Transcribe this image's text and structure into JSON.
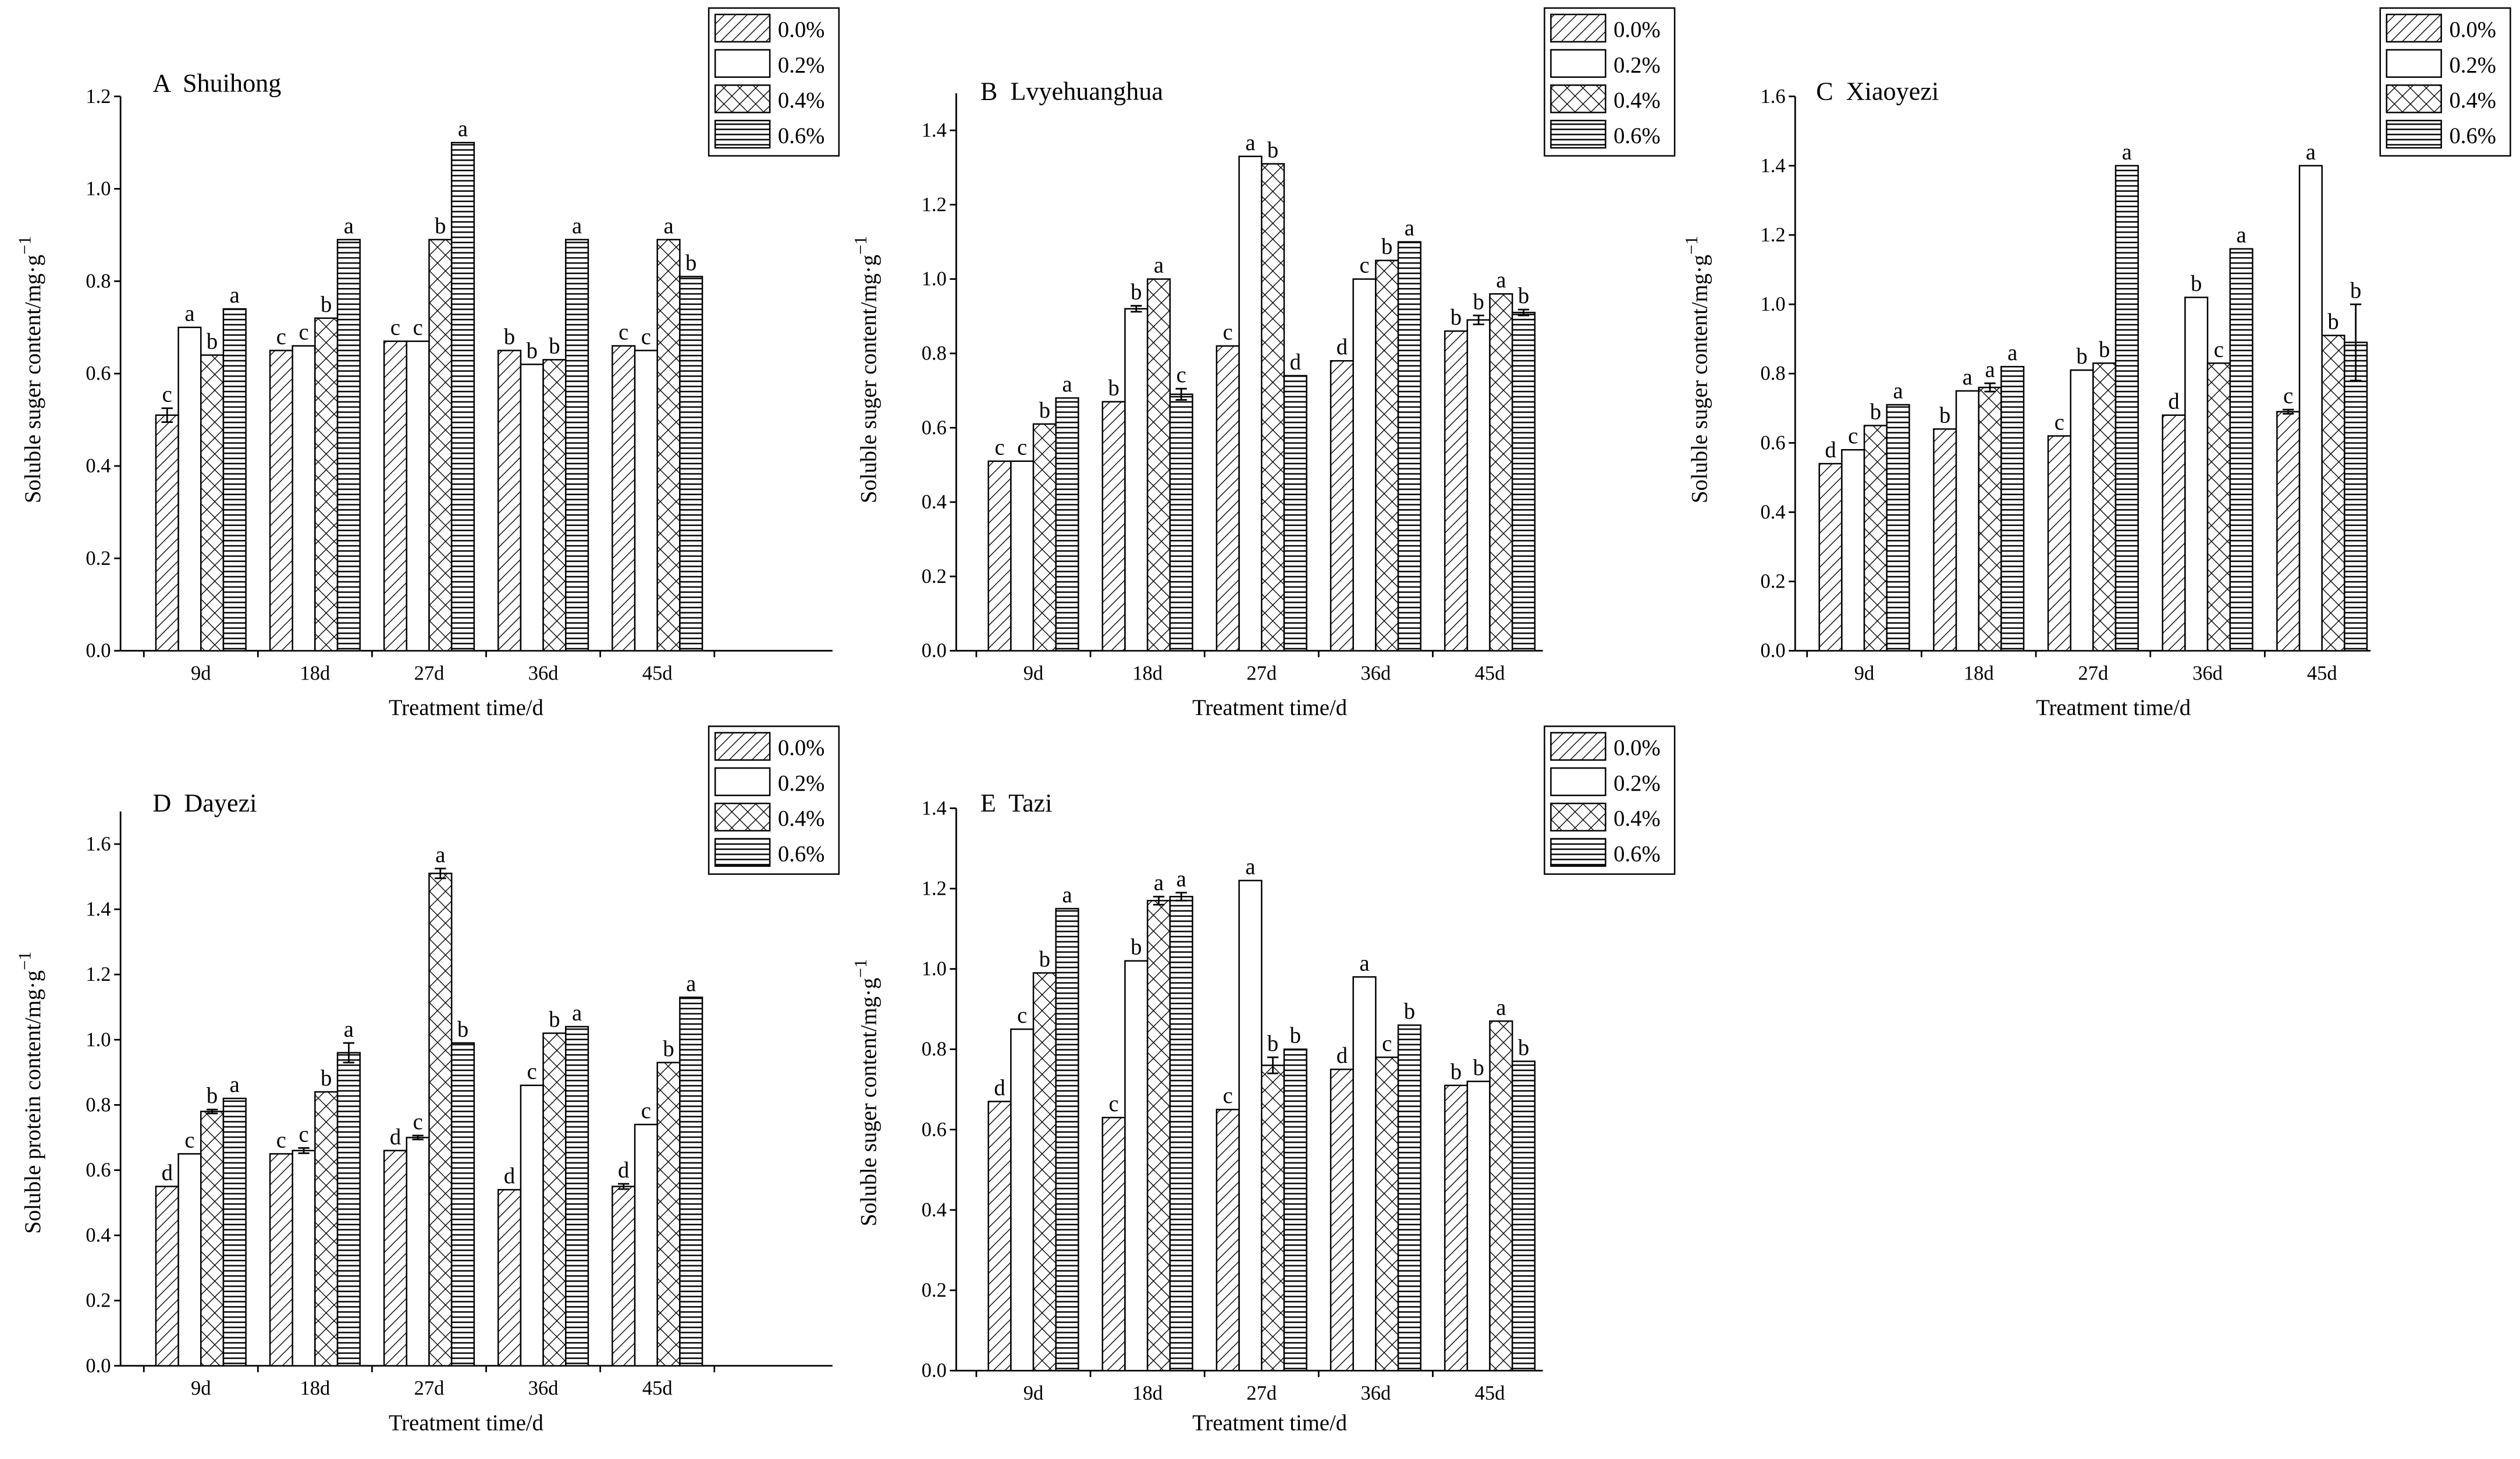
{
  "chart_data": [
    {
      "type": "bar",
      "title": "A  Shuihong",
      "xlabel": "Treatment time/d",
      "ylabel": "Soluble suger content/mg·g",
      "ylabel_sup": "−1",
      "categories": [
        "9d",
        "18d",
        "27d",
        "36d",
        "45d"
      ],
      "ylim": [
        0,
        1.2
      ],
      "yticks": [
        {
          "value": 0,
          "label": "0.0"
        },
        0.2,
        0.4,
        0.6,
        0.8,
        {
          "value": 1,
          "label": "1.0"
        },
        1.2
      ],
      "series": [
        {
          "name": "0.0%",
          "pattern": "diagonal",
          "values": [
            0.51,
            0.65,
            0.67,
            0.65,
            0.66
          ],
          "errors": [
            0.015,
            null,
            null,
            null,
            null
          ],
          "letters": [
            "c",
            "c",
            "c",
            "b",
            "c"
          ]
        },
        {
          "name": "0.2%",
          "pattern": "none",
          "values": [
            0.7,
            0.66,
            0.67,
            0.62,
            0.65
          ],
          "errors": [
            null,
            null,
            null,
            null,
            null
          ],
          "letters": [
            "a",
            "c",
            "c",
            "b",
            "c"
          ]
        },
        {
          "name": "0.4%",
          "pattern": "crosshatch",
          "values": [
            0.64,
            0.72,
            0.89,
            0.63,
            0.89
          ],
          "errors": [
            null,
            null,
            null,
            null,
            null
          ],
          "letters": [
            "b",
            "b",
            "b",
            "b",
            "a"
          ]
        },
        {
          "name": "0.6%",
          "pattern": "horizontal",
          "values": [
            0.74,
            0.89,
            1.1,
            0.89,
            0.81
          ],
          "errors": [
            null,
            null,
            null,
            null,
            null
          ],
          "letters": [
            "a",
            "a",
            "a",
            "a",
            "b"
          ]
        }
      ]
    },
    {
      "type": "bar",
      "title": "B  Lvyehuanghua",
      "xlabel": "Treatment time/d",
      "ylabel": "Soluble suger content/mg·g",
      "ylabel_sup": "−1",
      "categories": [
        "9d",
        "18d",
        "27d",
        "36d",
        "45d"
      ],
      "ylim": [
        0,
        1.5
      ],
      "yticks": [
        {
          "value": 0,
          "label": "0.0"
        },
        0.2,
        0.4,
        0.6,
        0.8,
        {
          "value": 1,
          "label": "1.0"
        },
        1.2,
        1.4
      ],
      "series": [
        {
          "name": "0.0%",
          "pattern": "diagonal",
          "values": [
            0.51,
            0.67,
            0.82,
            0.78,
            0.86
          ],
          "errors": [
            null,
            null,
            null,
            null,
            null
          ],
          "letters": [
            "c",
            "b",
            "c",
            "d",
            "b"
          ]
        },
        {
          "name": "0.2%",
          "pattern": "none",
          "values": [
            0.51,
            0.92,
            1.33,
            1.0,
            0.89
          ],
          "errors": [
            null,
            0.008,
            null,
            null,
            0.012
          ],
          "letters": [
            "c",
            "b",
            "a",
            "c",
            "b"
          ]
        },
        {
          "name": "0.4%",
          "pattern": "crosshatch",
          "values": [
            0.61,
            1.0,
            1.31,
            1.05,
            0.96
          ],
          "errors": [
            null,
            null,
            null,
            null,
            null
          ],
          "letters": [
            "b",
            "a",
            "b",
            "b",
            "a"
          ]
        },
        {
          "name": "0.6%",
          "pattern": "horizontal",
          "values": [
            0.68,
            0.69,
            0.74,
            1.1,
            0.91
          ],
          "errors": [
            null,
            0.015,
            null,
            null,
            0.008
          ],
          "letters": [
            "a",
            "c",
            "d",
            "a",
            "b"
          ]
        }
      ]
    },
    {
      "type": "bar",
      "title": "C  Xiaoyezi",
      "xlabel": "Treatment time/d",
      "ylabel": "Soluble suger content/mg·g",
      "ylabel_sup": "−1",
      "categories": [
        "9d",
        "18d",
        "27d",
        "36d",
        "45d"
      ],
      "ylim": [
        0,
        1.6
      ],
      "yticks": [
        {
          "value": 0,
          "label": "0.0"
        },
        0.2,
        0.4,
        0.6,
        0.8,
        {
          "value": 1,
          "label": "1.0"
        },
        1.2,
        1.4,
        1.6
      ],
      "series": [
        {
          "name": "0.0%",
          "pattern": "diagonal",
          "values": [
            0.54,
            0.64,
            0.62,
            0.68,
            0.69
          ],
          "errors": [
            null,
            null,
            null,
            null,
            0.006
          ],
          "letters": [
            "d",
            "b",
            "c",
            "d",
            "c"
          ]
        },
        {
          "name": "0.2%",
          "pattern": "none",
          "values": [
            0.58,
            0.75,
            0.81,
            1.02,
            1.4
          ],
          "errors": [
            null,
            null,
            null,
            null,
            null
          ],
          "letters": [
            "c",
            "a",
            "b",
            "b",
            "a"
          ]
        },
        {
          "name": "0.4%",
          "pattern": "crosshatch",
          "values": [
            0.65,
            0.76,
            0.83,
            0.83,
            0.91
          ],
          "errors": [
            null,
            0.012,
            null,
            null,
            null
          ],
          "letters": [
            "b",
            "a",
            "b",
            "c",
            "b"
          ]
        },
        {
          "name": "0.6%",
          "pattern": "horizontal",
          "values": [
            0.71,
            0.82,
            1.4,
            1.16,
            0.89
          ],
          "errors": [
            null,
            null,
            null,
            null,
            0.11
          ],
          "letters": [
            "a",
            "a",
            "a",
            "a",
            "b"
          ]
        }
      ]
    },
    {
      "type": "bar",
      "title": "D  Dayezi",
      "xlabel": "Treatment time/d",
      "ylabel": "Soluble protein content/mg·g",
      "ylabel_sup": "−1",
      "categories": [
        "9d",
        "18d",
        "27d",
        "36d",
        "45d"
      ],
      "ylim": [
        0,
        1.7
      ],
      "yticks": [
        {
          "value": 0,
          "label": "0.0"
        },
        0.2,
        0.4,
        0.6,
        0.8,
        {
          "value": 1,
          "label": "1.0"
        },
        1.2,
        1.4,
        1.6
      ],
      "series": [
        {
          "name": "0.0%",
          "pattern": "diagonal",
          "values": [
            0.55,
            0.65,
            0.66,
            0.54,
            0.55
          ],
          "errors": [
            null,
            null,
            null,
            null,
            0.008
          ],
          "letters": [
            "d",
            "c",
            "d",
            "d",
            "d"
          ]
        },
        {
          "name": "0.2%",
          "pattern": "none",
          "values": [
            0.65,
            0.66,
            0.7,
            0.86,
            0.74
          ],
          "errors": [
            null,
            0.008,
            0.006,
            null,
            null
          ],
          "letters": [
            "c",
            "c",
            "c",
            "c",
            "c"
          ]
        },
        {
          "name": "0.4%",
          "pattern": "crosshatch",
          "values": [
            0.78,
            0.84,
            1.51,
            1.02,
            0.93
          ],
          "errors": [
            0.006,
            null,
            0.015,
            null,
            null
          ],
          "letters": [
            "b",
            "b",
            "a",
            "b",
            "b"
          ]
        },
        {
          "name": "0.6%",
          "pattern": "horizontal",
          "values": [
            0.82,
            0.96,
            0.99,
            1.04,
            1.13
          ],
          "errors": [
            null,
            0.03,
            null,
            null,
            null
          ],
          "letters": [
            "a",
            "a",
            "b",
            "a",
            "a"
          ]
        }
      ]
    },
    {
      "type": "bar",
      "title": "E  Tazi",
      "xlabel": "Treatment time/d",
      "ylabel": "Soluble suger content/mg·g",
      "ylabel_sup": "−1",
      "categories": [
        "9d",
        "18d",
        "27d",
        "36d",
        "45d"
      ],
      "ylim": [
        0,
        1.4
      ],
      "yticks": [
        {
          "value": 0,
          "label": "0.0"
        },
        0.2,
        0.4,
        0.6,
        0.8,
        {
          "value": 1,
          "label": "1.0"
        },
        1.2,
        1.4
      ],
      "series": [
        {
          "name": "0.0%",
          "pattern": "diagonal",
          "values": [
            0.67,
            0.63,
            0.65,
            0.75,
            0.71
          ],
          "errors": [
            null,
            null,
            null,
            null,
            null
          ],
          "letters": [
            "d",
            "c",
            "c",
            "d",
            "b"
          ]
        },
        {
          "name": "0.2%",
          "pattern": "none",
          "values": [
            0.85,
            1.02,
            1.22,
            0.98,
            0.72
          ],
          "errors": [
            null,
            null,
            null,
            null,
            null
          ],
          "letters": [
            "c",
            "b",
            "a",
            "a",
            "b"
          ]
        },
        {
          "name": "0.4%",
          "pattern": "crosshatch",
          "values": [
            0.99,
            1.17,
            0.76,
            0.78,
            0.87
          ],
          "errors": [
            null,
            0.01,
            0.02,
            null,
            null
          ],
          "letters": [
            "b",
            "a",
            "b",
            "c",
            "a"
          ]
        },
        {
          "name": "0.6%",
          "pattern": "horizontal",
          "values": [
            1.15,
            1.18,
            0.8,
            0.86,
            0.77
          ],
          "errors": [
            null,
            0.01,
            null,
            null,
            null
          ],
          "letters": [
            "a",
            "a",
            "b",
            "b",
            "b"
          ]
        }
      ]
    }
  ]
}
